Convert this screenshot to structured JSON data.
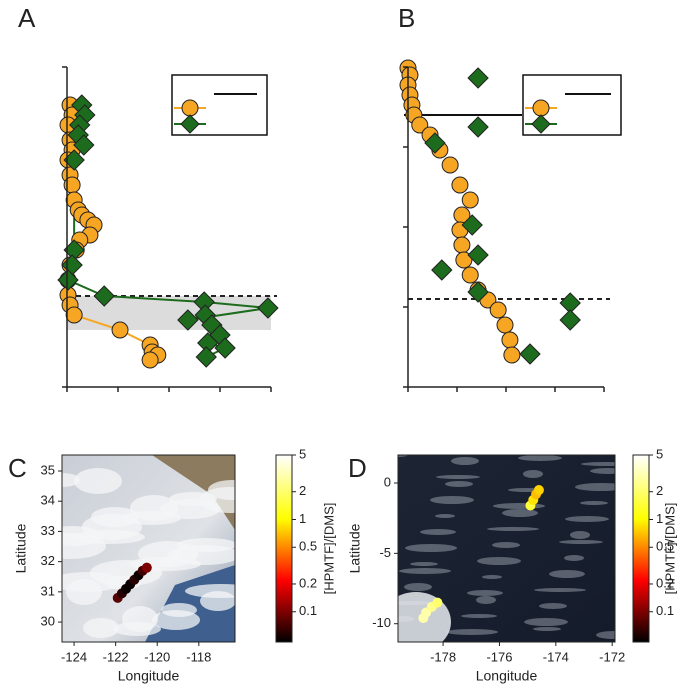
{
  "chart_data": [
    {
      "type": "scatter",
      "panel_label": "A",
      "xlim": [
        0,
        4
      ],
      "xticks": [
        0,
        1,
        2,
        3,
        4
      ],
      "ylim": [
        0,
        320
      ],
      "yticks": [
        0,
        320
      ],
      "y_reversed": true,
      "shaded_band": [
        229,
        263
      ],
      "hline_dashed": 229,
      "legend": "upper right",
      "series": [
        {
          "color": "#f6a623",
          "marker": "circle",
          "connect": true,
          "x": [
            0.06,
            0.1,
            0.02,
            0.06,
            0.1,
            0.02,
            0.06,
            0.1,
            0.14,
            0.22,
            0.29,
            0.41,
            0.53,
            0.45,
            0.25,
            0.18,
            0.06,
            0.02,
            0.02,
            0.06,
            0.14,
            1.04,
            1.63,
            1.67,
            1.78,
            1.63
          ],
          "values": [
            38,
            48,
            58,
            73,
            83,
            93,
            108,
            118,
            133,
            143,
            148,
            153,
            158,
            168,
            173,
            183,
            198,
            213,
            228,
            238,
            248,
            263,
            278,
            285,
            288,
            293
          ]
        },
        {
          "color": "#1d6b1d",
          "marker": "diamond",
          "connect": true,
          "x": [
            0.29,
            0.35,
            0.25,
            0.22,
            0.33,
            0.14,
            0.14,
            0.1,
            0.02,
            0.73,
            2.69,
            3.94,
            2.37,
            2.71,
            2.84,
            3.0,
            2.76,
            3.1,
            2.73
          ],
          "values": [
            38,
            48,
            58,
            68,
            78,
            93,
            183,
            198,
            213,
            229,
            235,
            241,
            253,
            248,
            258,
            268,
            276,
            281,
            290
          ]
        }
      ]
    },
    {
      "type": "scatter",
      "panel_label": "B",
      "xlim": [
        0,
        4
      ],
      "xticks": [
        0,
        1,
        2,
        3,
        4
      ],
      "ylim": [
        0,
        320
      ],
      "yticks": [
        0,
        80,
        160,
        240,
        320
      ],
      "y_reversed": true,
      "hline_dashed": 232,
      "hline_solid": 48,
      "legend": "upper right",
      "series": [
        {
          "color": "#f6a623",
          "marker": "circle",
          "connect": false,
          "x": [
            0,
            0.04,
            0,
            0.04,
            0.08,
            0.12,
            0.24,
            0.45,
            0.65,
            0.86,
            1.06,
            1.27,
            1.1,
            1.06,
            1.1,
            1.14,
            1.27,
            1.43,
            1.63,
            1.84,
            1.98,
            2.08,
            2.12
          ],
          "values": [
            1,
            8,
            18,
            28,
            38,
            48,
            58,
            68,
            83,
            98,
            118,
            133,
            148,
            163,
            178,
            193,
            208,
            223,
            233,
            243,
            258,
            273,
            288
          ]
        },
        {
          "color": "#1d6b1d",
          "marker": "diamond",
          "connect": false,
          "x": [
            1.43,
            1.43,
            0.55,
            1.31,
            1.43,
            0.69,
            1.43,
            3.31,
            3.31,
            2.49
          ],
          "values": [
            11,
            60,
            76,
            158,
            188,
            203,
            225,
            236,
            253,
            287
          ]
        }
      ]
    },
    {
      "type": "map",
      "panel_label": "C",
      "image": "coastal",
      "xlabel": "Longitude",
      "ylabel": "Latitude",
      "xlim": [
        -124.58,
        -116.26
      ],
      "xticks": [
        -124,
        -122,
        -120,
        -118
      ],
      "ylim": [
        29.34,
        35.53
      ],
      "yticks": [
        30,
        31,
        32,
        33,
        34,
        35
      ],
      "x": [
        -121.9,
        -121.7,
        -121.5,
        -121.3,
        -121.1,
        -120.9,
        -120.7,
        -120.5
      ],
      "y": [
        30.8,
        30.95,
        31.1,
        31.25,
        31.4,
        31.55,
        31.7,
        31.8
      ],
      "values": [
        0.08,
        0.06,
        0.05,
        0.05,
        0.06,
        0.05,
        0.07,
        0.1
      ],
      "colorbar": {
        "label": "[HPMTF]/[DMS]",
        "scale": "log",
        "lim": [
          0.047,
          5
        ],
        "ticks": [
          5,
          2,
          1,
          0.5,
          0.2,
          0.1
        ]
      }
    },
    {
      "type": "map",
      "panel_label": "D",
      "image": "ocean",
      "xlabel": "Longitude",
      "ylabel": "Latitude",
      "xlim": [
        -179.6,
        -171.9
      ],
      "xticks": [
        -178,
        -176,
        -174,
        -172
      ],
      "ylim": [
        -11.3,
        1.99
      ],
      "yticks": [
        -10,
        -5,
        0
      ],
      "x": [
        -174.9,
        -174.8,
        -174.7,
        -174.6,
        -178.7,
        -178.6,
        -178.4,
        -178.2
      ],
      "y": [
        -1.6,
        -1.2,
        -0.8,
        -0.5,
        -9.6,
        -9.2,
        -8.8,
        -8.5
      ],
      "values": [
        1.5,
        0.9,
        0.7,
        0.8,
        3,
        3,
        2.5,
        2
      ],
      "colorbar": {
        "label": "[HPMTF]/[DMS]",
        "scale": "log",
        "lim": [
          0.047,
          5
        ],
        "ticks": [
          5,
          2,
          1,
          0.5,
          0.2,
          0.1
        ]
      }
    }
  ]
}
